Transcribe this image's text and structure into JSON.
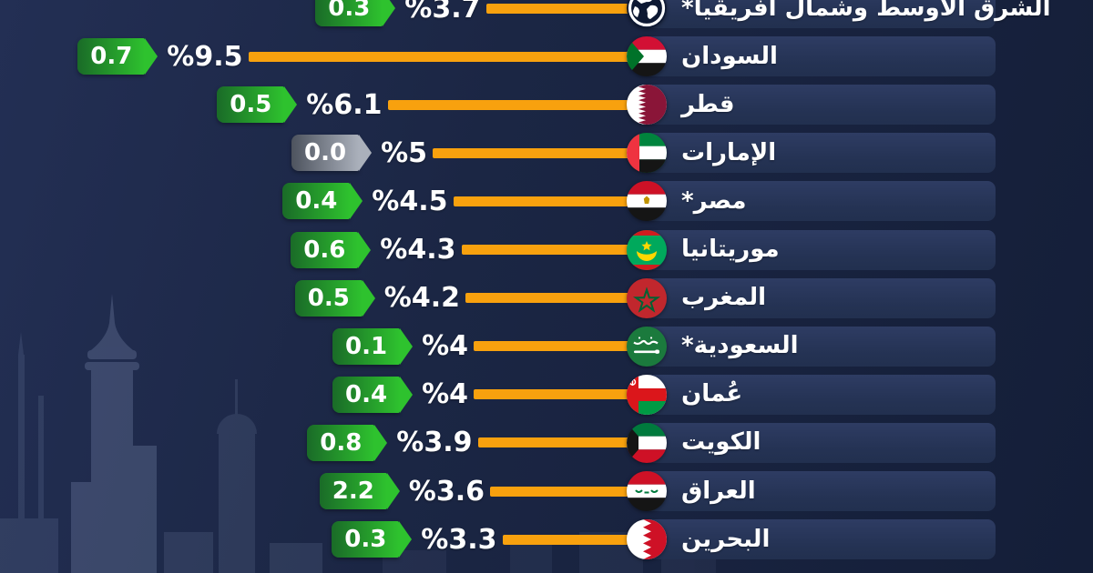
{
  "chart_data": {
    "type": "bar",
    "orientation": "horizontal-rtl",
    "value_prefix": "%",
    "rows": [
      {
        "name": "الشرق الأوسط وشمال أفريقيا*",
        "flag": "globe",
        "value": 3.7,
        "value_label": "%3.7",
        "change": "0.3",
        "change_color": "green"
      },
      {
        "name": "السودان",
        "flag": "sudan",
        "value": 9.5,
        "value_label": "%9.5",
        "change": "0.7",
        "change_color": "green"
      },
      {
        "name": "قطر",
        "flag": "qatar",
        "value": 6.1,
        "value_label": "%6.1",
        "change": "0.5",
        "change_color": "green"
      },
      {
        "name": "الإمارات",
        "flag": "uae",
        "value": 5.0,
        "value_label": "%5",
        "change": "0.0",
        "change_color": "gray"
      },
      {
        "name": "مصر*",
        "flag": "egypt",
        "value": 4.5,
        "value_label": "%4.5",
        "change": "0.4",
        "change_color": "green"
      },
      {
        "name": "موريتانيا",
        "flag": "mauritania",
        "value": 4.3,
        "value_label": "%4.3",
        "change": "0.6",
        "change_color": "green"
      },
      {
        "name": "المغرب",
        "flag": "morocco",
        "value": 4.2,
        "value_label": "%4.2",
        "change": "0.5",
        "change_color": "green"
      },
      {
        "name": "السعودية*",
        "flag": "saudi-arabia",
        "value": 4.0,
        "value_label": "%4",
        "change": "0.1",
        "change_color": "green"
      },
      {
        "name": "عُمان",
        "flag": "oman",
        "value": 4.0,
        "value_label": "%4",
        "change": "0.4",
        "change_color": "green"
      },
      {
        "name": "الكويت",
        "flag": "kuwait",
        "value": 3.9,
        "value_label": "%3.9",
        "change": "0.8",
        "change_color": "green"
      },
      {
        "name": "العراق",
        "flag": "iraq",
        "value": 3.6,
        "value_label": "%3.6",
        "change": "2.2",
        "change_color": "green"
      },
      {
        "name": "البحرين",
        "flag": "bahrain",
        "value": 3.3,
        "value_label": "%3.3",
        "change": "0.3",
        "change_color": "green"
      }
    ],
    "colors": {
      "bar": "#F8A10E",
      "green_tag_start": "#1a6b28",
      "green_tag_end": "#2ec22e",
      "gray_tag_start": "#4d535e",
      "gray_tag_end": "#aab0bb",
      "background": "#1b2644",
      "row_background": "#243253",
      "text": "#ffffff"
    }
  }
}
